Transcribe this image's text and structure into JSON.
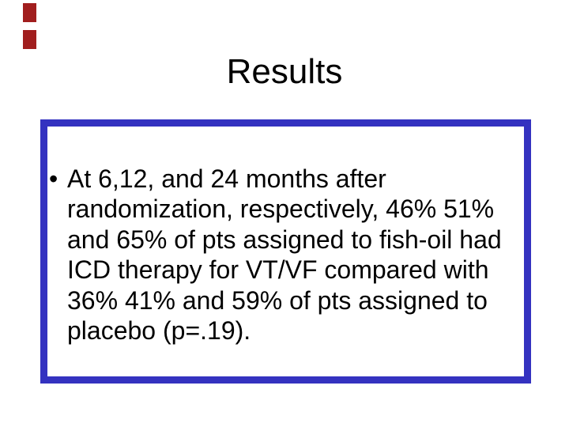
{
  "slide": {
    "title": "Results",
    "content_box": {
      "bullet_char": "•",
      "lines": [
        "At 6,12, and 24 months after",
        "randomization, respectively, 46% 51%",
        "and 65% of pts assigned to fish-oil had",
        "ICD therapy for VT/VF compared with",
        "36% 41% and 59% of pts assigned to",
        "placebo (p=.19)."
      ]
    },
    "colors": {
      "box_border_blue": "#3432C0",
      "accent_bar_red": "#A11E1E",
      "background": "#FFFFFF",
      "text_black": "#000000"
    }
  }
}
